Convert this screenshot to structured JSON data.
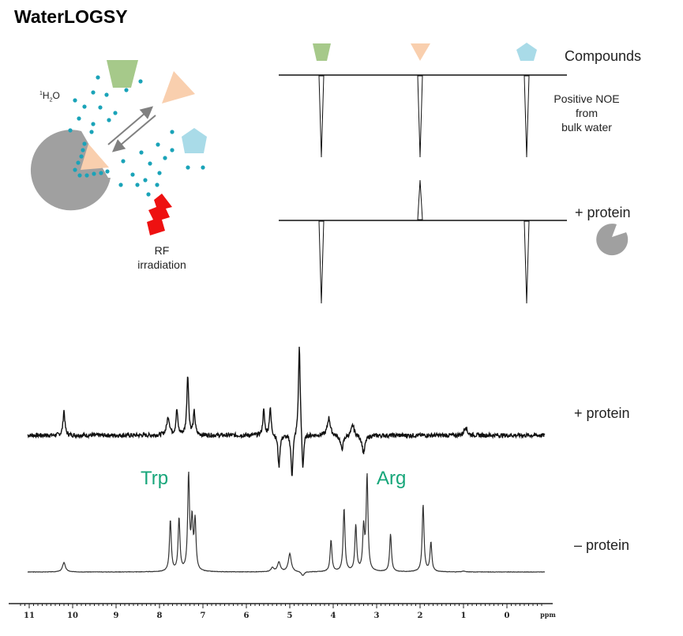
{
  "title": "WaterLOGSY",
  "schematic": {
    "water_label": "1H2O",
    "water_label_parts": {
      "sup": "1",
      "main": "H",
      "sub": "2",
      "tail": "O"
    },
    "rf_label_line1": "RF",
    "rf_label_line2": "irradiation",
    "compounds_label": "Compounds",
    "noe_label_line1": "Positive NOE",
    "noe_label_line2": "from",
    "noe_label_line3": "bulk water",
    "protein_label": "+ protein",
    "colors": {
      "protein": "#a0a0a0",
      "water": "#1aa3b8",
      "compound_green": "#a6c98a",
      "compound_peach": "#f9cfae",
      "compound_blue": "#a9dbe8",
      "rf": "#ee1111",
      "arrow": "#808080"
    },
    "compounds": [
      {
        "name": "green-trapezoid",
        "free_signal": "negative",
        "with_protein_signal": "negative"
      },
      {
        "name": "peach-triangle",
        "free_signal": "negative",
        "with_protein_signal": "positive"
      },
      {
        "name": "blue-pentagon",
        "free_signal": "negative",
        "with_protein_signal": "negative"
      }
    ]
  },
  "spectra": {
    "top_label": "+ protein",
    "bottom_label": "– protein",
    "annotations": [
      {
        "text": "Trp",
        "ppm": 8.2
      },
      {
        "text": "Arg",
        "ppm": 2.7
      }
    ],
    "annotation_color": "#17a67a"
  },
  "chart_data": {
    "type": "line",
    "title": "WaterLOGSY",
    "xlabel": "ppm",
    "xlim": [
      11.0,
      -0.8
    ],
    "x_reversed": true,
    "x_ticks": [
      11,
      10,
      9,
      8,
      7,
      6,
      5,
      4,
      3,
      2,
      1,
      0
    ],
    "x_tick_labels": [
      "11",
      "10",
      "9",
      "8",
      "7",
      "6",
      "5",
      "4",
      "3",
      "2",
      "1",
      "0"
    ],
    "axis_unit_label": "ppm",
    "series": [
      {
        "name": "+ protein",
        "peaks": [
          {
            "ppm": 10.2,
            "height": 0.35
          },
          {
            "ppm": 7.8,
            "height": 0.25
          },
          {
            "ppm": 7.6,
            "height": 0.35
          },
          {
            "ppm": 7.35,
            "height": 0.85
          },
          {
            "ppm": 7.2,
            "height": 0.32
          },
          {
            "ppm": 5.6,
            "height": 0.35
          },
          {
            "ppm": 5.45,
            "height": 0.38
          },
          {
            "ppm": 5.25,
            "height": -0.45
          },
          {
            "ppm": 4.95,
            "height": -0.6
          },
          {
            "ppm": 4.78,
            "height": 1.3
          },
          {
            "ppm": 4.7,
            "height": -0.55
          },
          {
            "ppm": 4.1,
            "height": 0.25
          },
          {
            "ppm": 3.8,
            "height": -0.2
          },
          {
            "ppm": 3.55,
            "height": 0.15
          },
          {
            "ppm": 3.3,
            "height": -0.25
          },
          {
            "ppm": 0.95,
            "height": 0.12
          }
        ]
      },
      {
        "name": "– protein",
        "peaks": [
          {
            "ppm": 10.2,
            "height": 0.12
          },
          {
            "ppm": 7.75,
            "height": 0.65
          },
          {
            "ppm": 7.55,
            "height": 0.67
          },
          {
            "ppm": 7.33,
            "height": 1.2
          },
          {
            "ppm": 7.25,
            "height": 0.6
          },
          {
            "ppm": 7.18,
            "height": 0.62
          },
          {
            "ppm": 5.4,
            "height": 0.05
          },
          {
            "ppm": 5.25,
            "height": 0.12
          },
          {
            "ppm": 5.0,
            "height": 0.23
          },
          {
            "ppm": 4.7,
            "height": -0.05
          },
          {
            "ppm": 4.05,
            "height": 0.4
          },
          {
            "ppm": 3.75,
            "height": 0.8
          },
          {
            "ppm": 3.48,
            "height": 0.58
          },
          {
            "ppm": 3.3,
            "height": 0.53
          },
          {
            "ppm": 3.22,
            "height": 1.2
          },
          {
            "ppm": 2.68,
            "height": 0.48
          },
          {
            "ppm": 1.93,
            "height": 0.85
          },
          {
            "ppm": 1.75,
            "height": 0.37
          },
          {
            "ppm": 1.0,
            "height": 0.01
          }
        ]
      }
    ],
    "grid": false,
    "legend": "none"
  }
}
